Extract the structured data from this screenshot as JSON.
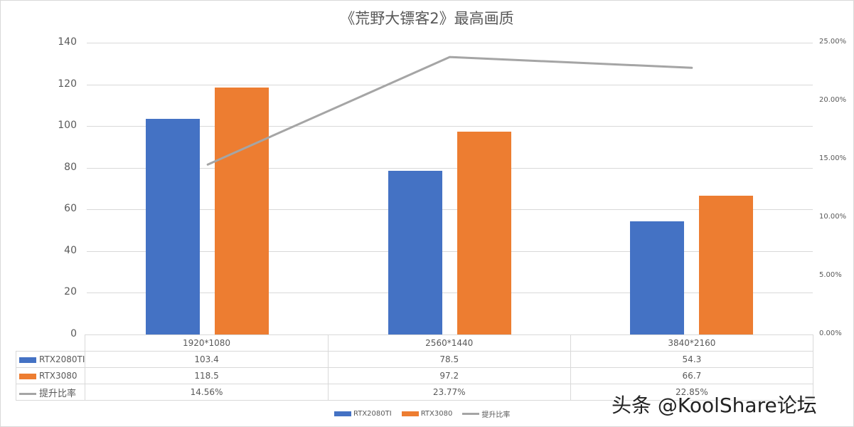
{
  "title": "《荒野大镖客2》最高画质",
  "colors": {
    "rtx2080ti": "#4472C4",
    "rtx3080": "#ED7D31",
    "ratio": "#A5A5A5",
    "grid": "#D9D9D9",
    "text": "#595959"
  },
  "axes": {
    "y_left_ticks": [
      "140",
      "120",
      "100",
      "80",
      "60",
      "40",
      "20",
      "0"
    ],
    "y_right_ticks": [
      "25.00%",
      "20.00%",
      "15.00%",
      "10.00%",
      "5.00%",
      "0.00%"
    ]
  },
  "table": {
    "categories": [
      "1920*1080",
      "2560*1440",
      "3840*2160"
    ],
    "rows": [
      {
        "label": "RTX2080TI",
        "values": [
          "103.4",
          "78.5",
          "54.3"
        ]
      },
      {
        "label": "RTX3080",
        "values": [
          "118.5",
          "97.2",
          "66.7"
        ]
      },
      {
        "label": "提升比率",
        "values": [
          "14.56%",
          "23.77%",
          "22.85%"
        ]
      }
    ]
  },
  "legend": [
    "RTX2080TI",
    "RTX3080",
    "提升比率"
  ],
  "watermark": "头条 @KoolShare论坛",
  "chart_data": {
    "type": "bar",
    "title": "《荒野大镖客2》最高画质",
    "categories": [
      "1920*1080",
      "2560*1440",
      "3840*2160"
    ],
    "series": [
      {
        "name": "RTX2080TI",
        "type": "bar",
        "axis": "left",
        "values": [
          103.4,
          78.5,
          54.3
        ]
      },
      {
        "name": "RTX3080",
        "type": "bar",
        "axis": "left",
        "values": [
          118.5,
          97.2,
          66.7
        ]
      },
      {
        "name": "提升比率",
        "type": "line",
        "axis": "right",
        "values": [
          14.56,
          23.77,
          22.85
        ],
        "unit": "%"
      }
    ],
    "xlabel": "",
    "ylabel": "",
    "ylim": [
      0,
      140
    ],
    "y2lim": [
      0,
      25
    ],
    "grid": true,
    "legend_position": "bottom",
    "data_table": true
  }
}
